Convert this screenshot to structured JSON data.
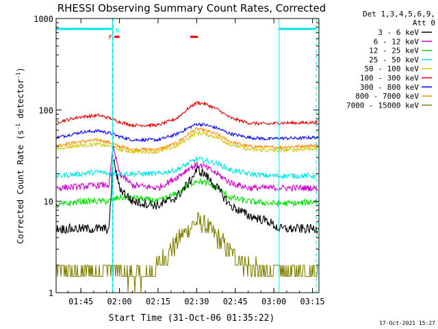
{
  "chart_data": {
    "type": "line",
    "title": "RHESSI Observing Summary Count Rates, Corrected",
    "xlabel": "Start Time (31-Oct-06 01:35:22)",
    "ylabel_main": "Corrected Count Rate (s",
    "ylabel_sup1": "-1",
    "ylabel_mid": " detector",
    "ylabel_sup2": "-1",
    "ylabel_end": ")",
    "y_scale": "log",
    "ylim": [
      1,
      1000
    ],
    "xlim_minutes": [
      95.37,
      197.5
    ],
    "x_ticks": [
      {
        "t": 105,
        "label": "01:45"
      },
      {
        "t": 120,
        "label": "02:00"
      },
      {
        "t": 135,
        "label": "02:15"
      },
      {
        "t": 150,
        "label": "02:30"
      },
      {
        "t": 165,
        "label": "02:45"
      },
      {
        "t": 180,
        "label": "03:00"
      },
      {
        "t": 195,
        "label": "03:15"
      }
    ],
    "y_ticks": [
      {
        "v": 1,
        "label": "1"
      },
      {
        "v": 10,
        "label": "10"
      },
      {
        "v": 100,
        "label": "100"
      },
      {
        "v": 1000,
        "label": "1000"
      }
    ],
    "legend": {
      "header1": "Det 1,3,4,5,6,9,",
      "header2": "Att 0",
      "placement": "right-outside"
    },
    "series": [
      {
        "name": "3 - 6 keV",
        "color": "#000000",
        "noise": 0.12,
        "x": [
          96,
          105,
          112,
          116,
          117.5,
          120,
          125,
          135,
          142,
          147,
          150,
          153,
          158,
          163,
          170,
          178,
          182,
          190,
          196
        ],
        "y": [
          5,
          5,
          5,
          5,
          30,
          14,
          10,
          9,
          11,
          16,
          22,
          20,
          14,
          9,
          7,
          6,
          5,
          5,
          5
        ]
      },
      {
        "name": "6 - 12 keV",
        "color": "#cc00cc",
        "noise": 0.08,
        "x": [
          96,
          105,
          112,
          116,
          117.5,
          120,
          125,
          135,
          142,
          147,
          150,
          153,
          158,
          163,
          170,
          178,
          182,
          190,
          196
        ],
        "y": [
          14,
          14.5,
          15,
          15,
          40,
          20,
          15,
          14,
          18,
          23,
          25,
          24,
          20,
          16,
          14,
          14,
          14,
          14,
          14
        ]
      },
      {
        "name": "12 - 25 keV",
        "color": "#00dd00",
        "noise": 0.08,
        "x": [
          96,
          105,
          112,
          116,
          120,
          125,
          135,
          142,
          147,
          150,
          153,
          158,
          163,
          170,
          178,
          182,
          190,
          196
        ],
        "y": [
          9,
          10,
          10,
          10,
          11,
          11,
          10,
          12,
          15,
          17,
          16,
          14,
          11,
          10,
          9.5,
          9.5,
          9.5,
          10
        ]
      },
      {
        "name": "25 - 50 keV",
        "color": "#00e5e5",
        "noise": 0.07,
        "x": [
          96,
          105,
          112,
          116,
          120,
          125,
          135,
          142,
          147,
          150,
          153,
          158,
          163,
          170,
          178,
          182,
          190,
          196
        ],
        "y": [
          19,
          20,
          21,
          20,
          20,
          20,
          20,
          22,
          26,
          29,
          28,
          26,
          22,
          20,
          19,
          19,
          19,
          19
        ]
      },
      {
        "name": "50 - 100 keV",
        "color": "#d2c800",
        "noise": 0.05,
        "x": [
          96,
          105,
          112,
          116,
          120,
          125,
          135,
          142,
          147,
          150,
          153,
          158,
          163,
          170,
          178,
          182,
          190,
          196
        ],
        "y": [
          38,
          41,
          42,
          40,
          37,
          35,
          35,
          40,
          50,
          56,
          55,
          50,
          42,
          37,
          36,
          36,
          37,
          38
        ]
      },
      {
        "name": "100 - 300 keV",
        "color": "#dd0000",
        "noise": 0.04,
        "x": [
          96,
          105,
          112,
          116,
          120,
          125,
          135,
          142,
          147,
          150,
          153,
          158,
          163,
          170,
          178,
          182,
          190,
          196
        ],
        "y": [
          74,
          84,
          87,
          82,
          74,
          68,
          68,
          80,
          105,
          120,
          117,
          102,
          82,
          72,
          70,
          72,
          72,
          73
        ]
      },
      {
        "name": "300 - 800 keV",
        "color": "#0000ee",
        "noise": 0.04,
        "x": [
          96,
          105,
          112,
          116,
          120,
          125,
          135,
          142,
          147,
          150,
          153,
          158,
          163,
          170,
          178,
          182,
          190,
          196
        ],
        "y": [
          50,
          57,
          59,
          56,
          51,
          47,
          47,
          54,
          64,
          70,
          69,
          63,
          55,
          50,
          48,
          49,
          49,
          50
        ]
      },
      {
        "name": "800 - 7000 keV",
        "color": "#ff8800",
        "noise": 0.04,
        "x": [
          96,
          105,
          112,
          116,
          120,
          125,
          135,
          142,
          147,
          150,
          153,
          158,
          163,
          170,
          178,
          182,
          190,
          196
        ],
        "y": [
          41,
          45,
          47,
          44,
          40,
          37,
          37,
          43,
          55,
          62,
          60,
          54,
          45,
          40,
          39,
          39,
          40,
          41
        ]
      },
      {
        "name": "7000 - 15000 keV",
        "color": "#808000",
        "noise": 0.25,
        "x": [
          96,
          105,
          112,
          116,
          117,
          120,
          125,
          131,
          135,
          140,
          145,
          150,
          153,
          157,
          162,
          168,
          172,
          178,
          182,
          190,
          196
        ],
        "y": [
          1.7,
          1.7,
          1.8,
          1.8,
          1.8,
          1.6,
          1.5,
          1.6,
          2.0,
          3.0,
          4.5,
          6.0,
          5.7,
          4.3,
          3.0,
          2.2,
          1.8,
          1.7,
          1.7,
          1.7,
          1.7
        ]
      }
    ],
    "intervals": [
      {
        "name": "night-bar-1",
        "t0": 95.5,
        "t1": 117.3,
        "y": 770,
        "color": "#00e5e5"
      },
      {
        "name": "night-bar-2",
        "t0": 182.0,
        "t1": 196.5,
        "y": 770,
        "color": "#00e5e5"
      },
      {
        "name": "flare-bar-1",
        "t0": 118.0,
        "t1": 120.0,
        "y": 630,
        "color": "#ee0000"
      },
      {
        "name": "flare-bar-2",
        "t0": 147.5,
        "t1": 150.5,
        "y": 630,
        "color": "#ee0000"
      }
    ],
    "vlines": [
      {
        "name": "night-start-line",
        "t": 117.3,
        "style": "solid",
        "color": "#00e5e5"
      },
      {
        "name": "night-end-line",
        "t": 117.6,
        "style": "dashed",
        "color": "#00e5e5"
      },
      {
        "name": "night2-start-line",
        "t": 182.0,
        "style": "solid",
        "color": "#00e5e5"
      },
      {
        "name": "night2-end-line",
        "t": 196.5,
        "style": "dashed",
        "color": "#00e5e5"
      }
    ],
    "markers": [
      {
        "name": "marker-f",
        "text": "F",
        "t": 116.5,
        "y": 590,
        "color": "#ee0000"
      },
      {
        "name": "marker-n",
        "text": "N",
        "t": 119.2,
        "y": 700,
        "color": "#00e5e5"
      }
    ],
    "timestamp": "17-Oct-2021 15:27"
  }
}
